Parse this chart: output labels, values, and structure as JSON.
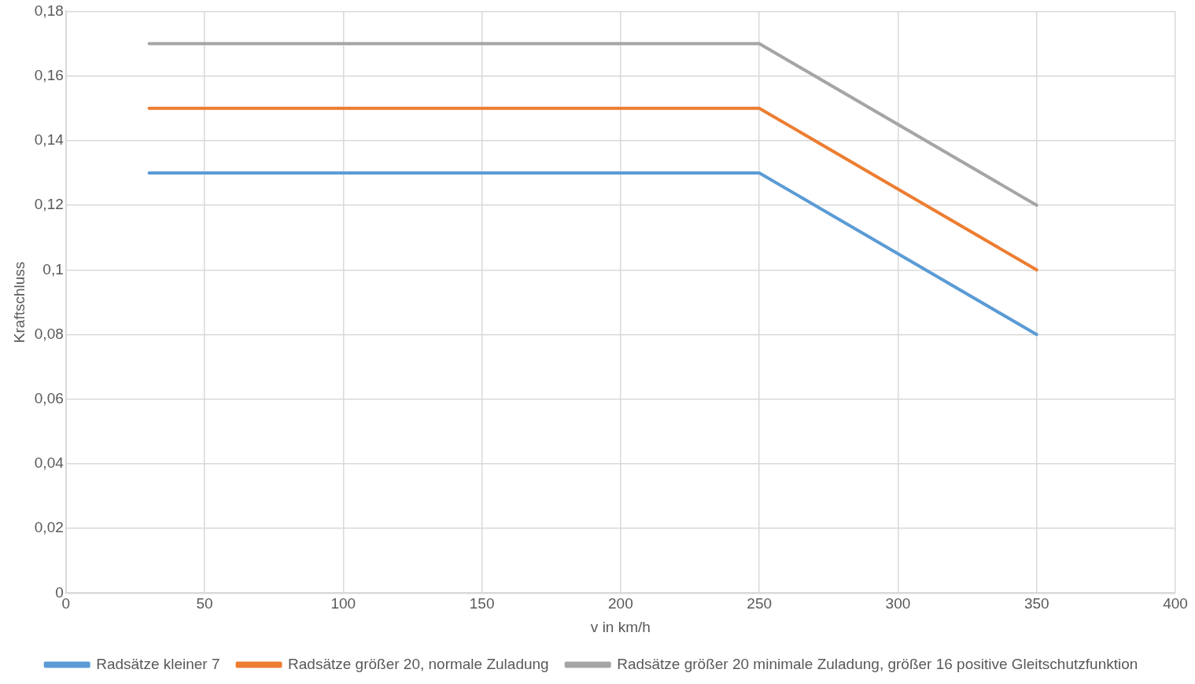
{
  "chart_data": {
    "type": "line",
    "xlabel": "v in km/h",
    "ylabel": "Kraftschluss",
    "xlim": [
      0,
      400
    ],
    "xticks": [
      0,
      50,
      100,
      150,
      200,
      250,
      300,
      350,
      400
    ],
    "ylim": [
      0,
      0.18
    ],
    "yticks": [
      0,
      {
        "value": 0.02,
        "label": "0,02"
      },
      {
        "value": 0.04,
        "label": "0,04"
      },
      {
        "value": 0.06,
        "label": "0,06"
      },
      {
        "value": 0.08,
        "label": "0,08"
      },
      {
        "value": 0.1,
        "label": "0,1"
      },
      {
        "value": 0.12,
        "label": "0,12"
      },
      {
        "value": 0.14,
        "label": "0,14"
      },
      {
        "value": 0.16,
        "label": "0,16"
      },
      {
        "value": 0.18,
        "label": "0,18"
      }
    ],
    "x": [
      30,
      250,
      350
    ],
    "series": [
      {
        "name": "Radsätze kleiner 7",
        "color": "#5b9bd5",
        "values": [
          0.13,
          0.13,
          0.08
        ]
      },
      {
        "name": "Radsätze größer 20, normale Zuladung",
        "color": "#ed7d31",
        "values": [
          0.15,
          0.15,
          0.1
        ]
      },
      {
        "name": "Radsätze größer 20 minimale Zuladung, größer 16 positive Gleitschutzfunktion",
        "color": "#a5a5a5",
        "values": [
          0.17,
          0.17,
          0.12
        ]
      }
    ],
    "grid": true,
    "legend": "bottom",
    "marker": "none",
    "line_style": "solid"
  }
}
